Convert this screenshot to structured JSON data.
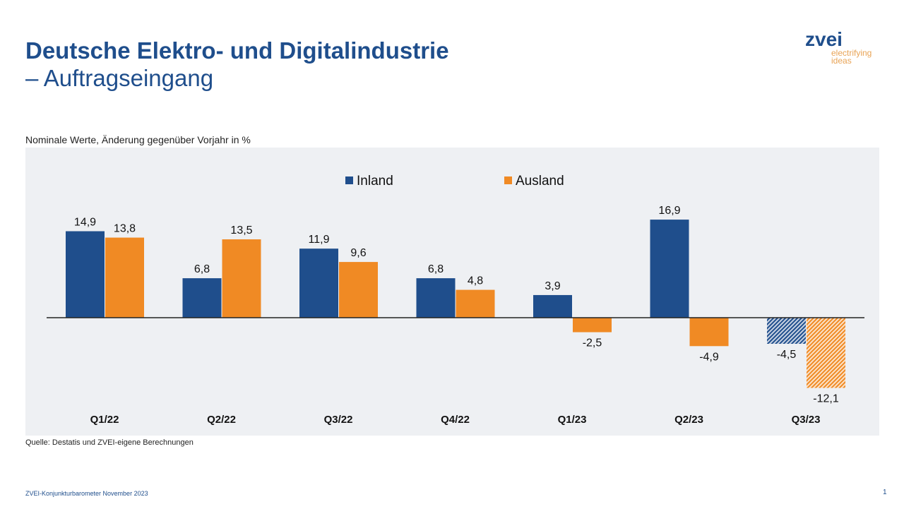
{
  "header": {
    "title_line1": "Deutsche Elektro- und Digitalindustrie",
    "title_line2": "– Auftragseingang"
  },
  "logo": {
    "brand": "zvei",
    "tagline1": "electrifying",
    "tagline2": "ideas"
  },
  "footer": {
    "source": "Quelle: Destatis und ZVEI-eigene Berechnungen",
    "publication": "ZVEI-Konjunkturbarometer November 2023",
    "page": "1"
  },
  "chart_data": {
    "type": "bar",
    "title": "Nominale Werte, Änderung gegenüber Vorjahr in %",
    "categories": [
      "Q1/22",
      "Q2/22",
      "Q3/22",
      "Q4/22",
      "Q1/23",
      "Q2/23",
      "Q3/23"
    ],
    "series": [
      {
        "name": "Inland",
        "color": "#1f4e8c",
        "values": [
          14.9,
          6.8,
          11.9,
          6.8,
          3.9,
          16.9,
          -4.5
        ],
        "labels": [
          "14,9",
          "6,8",
          "11,9",
          "6,8",
          "3,9",
          "16,9",
          "-4,5"
        ]
      },
      {
        "name": "Ausland",
        "color": "#f08a24",
        "values": [
          13.8,
          13.5,
          9.6,
          4.8,
          -2.5,
          -4.9,
          -12.1
        ],
        "labels": [
          "13,8",
          "13,5",
          "9,6",
          "4,8",
          "-2,5",
          "-4,9",
          "-12,1"
        ]
      }
    ],
    "hatched_categories": [
      "Q3/23"
    ],
    "legend": "top-center",
    "ylim": [
      -15,
      20
    ],
    "grid": false
  }
}
